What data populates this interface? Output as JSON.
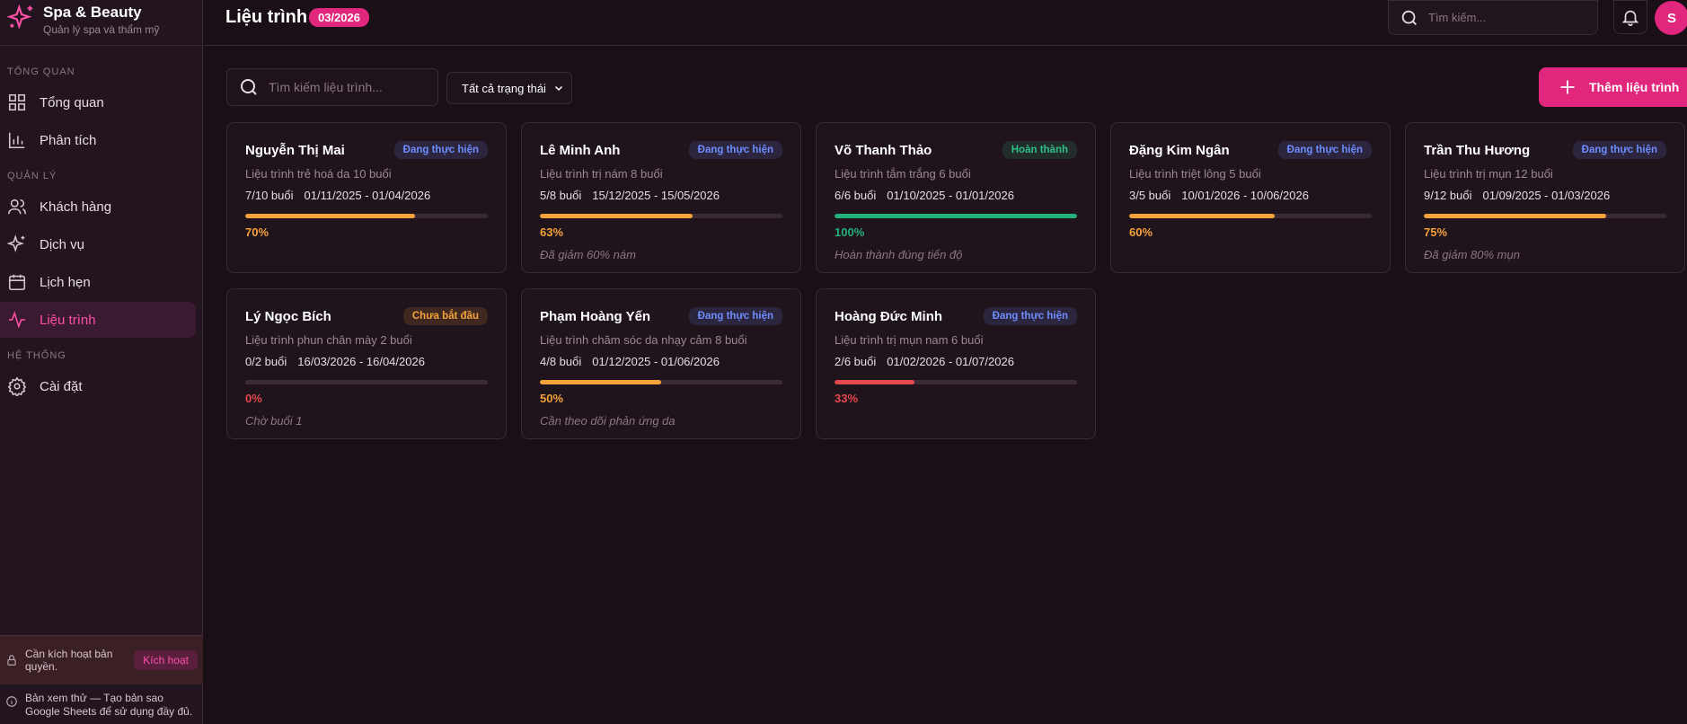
{
  "brand": {
    "name": "Spa & Beauty",
    "tagline": "Quản lý spa và thẩm mỹ"
  },
  "nav": [
    {
      "section": "TỔNG QUAN",
      "items": [
        "Tổng quan",
        "Phân tích"
      ]
    },
    {
      "section": "QUẢN LÝ",
      "items": [
        "Khách hàng",
        "Dịch vụ",
        "Lịch hẹn",
        "Liệu trình"
      ]
    },
    {
      "section": "HỆ THỐNG",
      "items": [
        "Cài đặt"
      ]
    }
  ],
  "license": {
    "text": "Cần kích hoạt bản quyền.",
    "button": "Kích hoạt"
  },
  "trial": "Bản xem thử — Tạo bản sao Google Sheets để sử dụng đầy đủ.",
  "header": {
    "title": "Liệu trình",
    "badge": "03/2026",
    "search_placeholder": "Tìm kiếm...",
    "avatar": "S"
  },
  "toolbar": {
    "search_placeholder": "Tìm kiếm liệu trình...",
    "filter": "Tất cả trạng thái",
    "add_button": "Thêm liệu trình"
  },
  "cards": [
    {
      "name": "Nguyễn Thị Mai",
      "status": "Đang thực hiện",
      "status_color": "#6f8cff",
      "description": "Liệu trình trẻ hoá da 10 buổi",
      "sessions": "7/10 buổi",
      "dates": "01/11/2025 - 01/04/2026",
      "progress": 70,
      "progress_label": "70%",
      "color": "#f5a23a"
    },
    {
      "name": "Lê Minh Anh",
      "status": "Đang thực hiện",
      "status_color": "#6f8cff",
      "description": "Liệu trình trị nám 8 buổi",
      "sessions": "5/8 buổi",
      "dates": "15/12/2025 - 15/05/2026",
      "progress": 63,
      "progress_label": "63%",
      "color": "#f5a23a",
      "note": "Đã giảm 60% nám"
    },
    {
      "name": "Võ Thanh Thảo",
      "status": "Hoàn thành",
      "status_color": "#2fbf84",
      "description": "Liệu trình tắm trắng 6 buổi",
      "sessions": "6/6 buổi",
      "dates": "01/10/2025 - 01/01/2026",
      "progress": 100,
      "progress_label": "100%",
      "color": "#22b07d",
      "note": "Hoàn thành đúng tiến độ"
    },
    {
      "name": "Đặng Kim Ngân",
      "status": "Đang thực hiện",
      "status_color": "#6f8cff",
      "description": "Liệu trình triệt lông 5 buổi",
      "sessions": "3/5 buổi",
      "dates": "10/01/2026 - 10/06/2026",
      "progress": 60,
      "progress_label": "60%",
      "color": "#f5a23a"
    },
    {
      "name": "Trần Thu Hương",
      "status": "Đang thực hiện",
      "status_color": "#6f8cff",
      "description": "Liệu trình trị mụn 12 buổi",
      "sessions": "9/12 buổi",
      "dates": "01/09/2025 - 01/03/2026",
      "progress": 75,
      "progress_label": "75%",
      "color": "#f5a23a",
      "note": "Đã giảm 80% mụn"
    },
    {
      "name": "Lý Ngọc Bích",
      "status": "Chưa bắt đầu",
      "status_color": "#f5a23a",
      "description": "Liệu trình phun chân mày 2 buổi",
      "sessions": "0/2 buổi",
      "dates": "16/03/2026 - 16/04/2026",
      "progress": 0,
      "progress_label": "0%",
      "color": "#e5484d",
      "note": "Chờ buổi 1"
    },
    {
      "name": "Phạm Hoàng Yến",
      "status": "Đang thực hiện",
      "status_color": "#6f8cff",
      "description": "Liệu trình chăm sóc da nhạy cảm 8 buổi",
      "sessions": "4/8 buổi",
      "dates": "01/12/2025 - 01/06/2026",
      "progress": 50,
      "progress_label": "50%",
      "color": "#f5a23a",
      "note": "Cần theo dõi phản ứng da"
    },
    {
      "name": "Hoàng Đức Minh",
      "status": "Đang thực hiện",
      "status_color": "#6f8cff",
      "description": "Liệu trình trị mụn nam 6 buổi",
      "sessions": "2/6 buổi",
      "dates": "01/02/2026 - 01/07/2026",
      "progress": 33,
      "progress_label": "33%",
      "color": "#e5484d"
    }
  ]
}
